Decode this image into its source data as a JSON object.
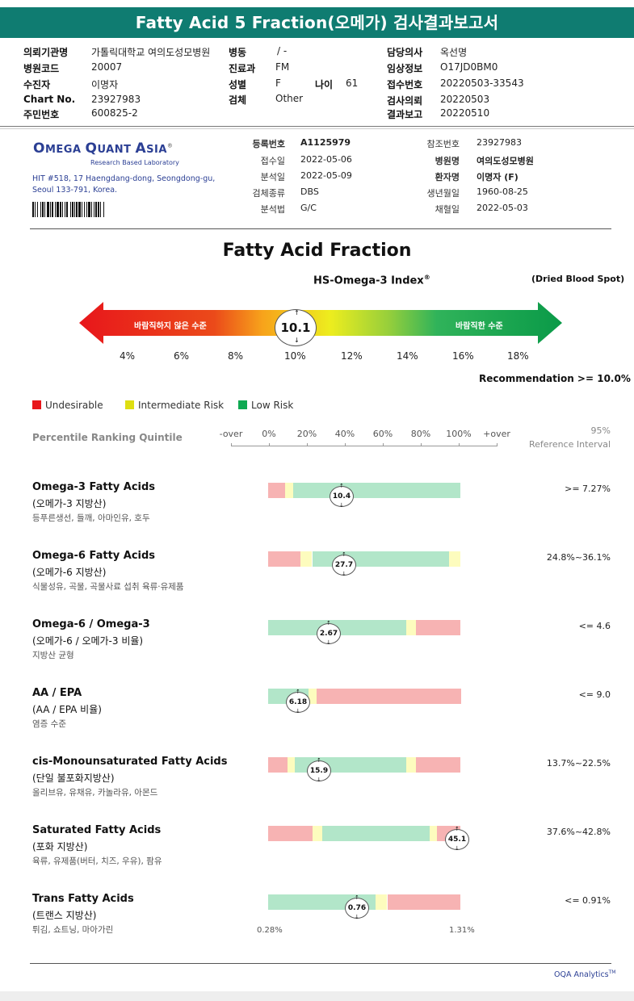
{
  "header": {
    "title": "Fatty Acid 5 Fraction(오메가) 검사결과보고서"
  },
  "patient_info": {
    "col1": [
      {
        "label": "의뢰기관명",
        "value": "가톨릭대학교 여의도성모병원"
      },
      {
        "label": "병원코드",
        "value": "20007"
      },
      {
        "label": "수진자",
        "value": "이명자"
      },
      {
        "label": "Chart No.",
        "value": "23927983"
      },
      {
        "label": "주민번호",
        "value": "600825-2"
      }
    ],
    "col2": [
      {
        "label": "병동",
        "value": "/ -"
      },
      {
        "label": "진료과",
        "value": "FM"
      },
      {
        "label": "성별",
        "value": "F"
      },
      {
        "label": "검체",
        "value": "Other"
      }
    ],
    "age": {
      "label": "나이",
      "value": "61"
    },
    "col3": [
      {
        "label": "담당의사",
        "value": "옥선명"
      },
      {
        "label": "임상정보",
        "value": "O17JD0BM0"
      },
      {
        "label": "접수번호",
        "value": "20220503-33543"
      },
      {
        "label": "검사의뢰",
        "value": "20220503"
      },
      {
        "label": "결과보고",
        "value": "20220510"
      }
    ]
  },
  "lab": {
    "name_part1": "O",
    "name_part2": "MEGA ",
    "name_part3": "Q",
    "name_part4": "UANT ",
    "name_part5": "A",
    "name_part6": "SIA",
    "reg": "®",
    "tagline": "Research Based Laboratory",
    "address1": "HIT #518, 17 Haengdang-dong, Seongdong-gu,",
    "address2": "Seoul 133-791, Korea."
  },
  "report_info": {
    "mid": [
      {
        "label": "등록번호",
        "value": "A1125979",
        "bold": true
      },
      {
        "label": "접수일",
        "value": "2022-05-06"
      },
      {
        "label": "분석일",
        "value": "2022-05-09"
      },
      {
        "label": "검체종류",
        "value": "DBS"
      },
      {
        "label": "분석법",
        "value": "G/C"
      }
    ],
    "right": [
      {
        "label": "참조번호",
        "value": "23927983"
      },
      {
        "label": "병원명",
        "value": "여의도성모병원",
        "bold": true
      },
      {
        "label": "환자명",
        "value": "이명자 (F)",
        "bold": true
      },
      {
        "label": "생년월일",
        "value": "1960-08-25"
      },
      {
        "label": "채혈일",
        "value": "2022-05-03"
      }
    ]
  },
  "fraction": {
    "title": "Fatty Acid Fraction",
    "index_title": "HS-Omega-3 Index",
    "index_reg": "®",
    "sample_type": "(Dried Blood Spot)",
    "left_label": "바람직하지 않은 수준",
    "right_label": "바람직한 수준",
    "value": "10.1",
    "scale": [
      "4%",
      "6%",
      "8%",
      "10%",
      "12%",
      "14%",
      "16%",
      "18%"
    ],
    "recommendation": "Recommendation  >= 10.0%"
  },
  "legend": [
    {
      "label": "Undesirable",
      "color": "#e8161b"
    },
    {
      "label": "Intermediate Risk",
      "color": "#dede12"
    },
    {
      "label": "Low Risk",
      "color": "#0fa952"
    }
  ],
  "ranking": {
    "title": "Percentile Ranking Quintile",
    "ticks": [
      "-over",
      "0%",
      "20%",
      "40%",
      "60%",
      "80%",
      "100%",
      "+over"
    ],
    "ref_title1": "95%",
    "ref_title2": "Reference Interval"
  },
  "colors": {
    "red": "#f7b3b3",
    "yellow": "#fdfcbe",
    "green": "#b2e6c9"
  },
  "rows": [
    {
      "title": "Omega-3 Fatty Acids",
      "sub": "(오메가-3 지방산)",
      "food": "등푸른생선, 들깨, 아마인유, 호두",
      "value": "10.4",
      "ref": ">= 7.27%"
    },
    {
      "title": "Omega-6 Fatty Acids",
      "sub": "(오메가-6 지방산)",
      "food": "식물성유, 곡물, 곡물사료 섭취 육류·유제품",
      "value": "27.7",
      "ref": "24.8%~36.1%"
    },
    {
      "title": "Omega-6 / Omega-3",
      "sub": "(오메가-6 / 오메가-3 비율)",
      "food": "지방산 균형",
      "value": "2.67",
      "ref": "<= 4.6"
    },
    {
      "title": "AA / EPA",
      "sub": "(AA / EPA 비율)",
      "food": "염증 수준",
      "value": "6.18",
      "ref": "<= 9.0"
    },
    {
      "title": "cis-Monounsaturated Fatty Acids",
      "sub": "(단일 불포화지방산)",
      "food": "올리브유, 유채유, 카놀라유, 아몬드",
      "value": "15.9",
      "ref": "13.7%~22.5%"
    },
    {
      "title": "Saturated Fatty Acids",
      "sub": "(포화 지방산)",
      "food": "육류, 유제품(버터, 치즈, 우유), 팜유",
      "value": "45.1",
      "ref": "37.6%~42.8%"
    },
    {
      "title": "Trans Fatty Acids",
      "sub": "(트랜스 지방산)",
      "food": "튀김, 쇼트닝, 마아가린",
      "value": "0.76",
      "ref": "<= 0.91%"
    }
  ],
  "trans_scale": {
    "min": "0.28%",
    "max": "1.31%"
  },
  "footer": {
    "brand": "OQA Analytics",
    "tm": "TM"
  }
}
